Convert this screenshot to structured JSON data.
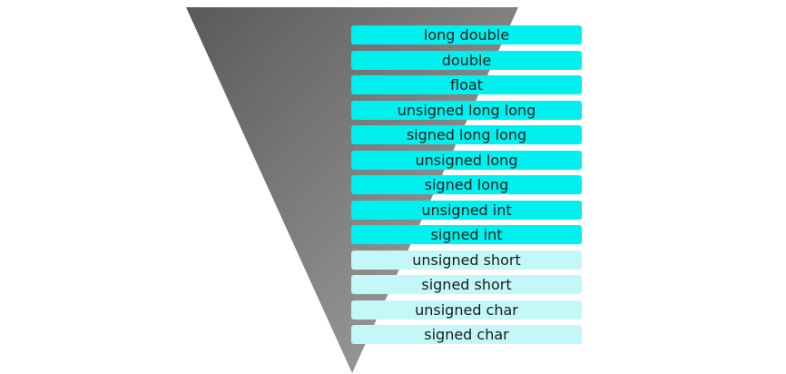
{
  "colors": {
    "funnel_gradient_start": "#5a5a5a",
    "funnel_gradient_end": "#a8a8a8",
    "row_strong": "#00f0f0",
    "row_light": "#c4f8f8",
    "text": "#1a1a1a",
    "background": "#ffffff"
  },
  "rows": [
    {
      "label": "long double",
      "shade": "strong"
    },
    {
      "label": "double",
      "shade": "strong"
    },
    {
      "label": "float",
      "shade": "strong"
    },
    {
      "label": "unsigned long long",
      "shade": "strong"
    },
    {
      "label": "signed long long",
      "shade": "strong"
    },
    {
      "label": "unsigned long",
      "shade": "strong"
    },
    {
      "label": "signed long",
      "shade": "strong"
    },
    {
      "label": "unsigned int",
      "shade": "strong"
    },
    {
      "label": "signed int",
      "shade": "strong"
    },
    {
      "label": "unsigned short",
      "shade": "light"
    },
    {
      "label": "signed short",
      "shade": "light"
    },
    {
      "label": "unsigned char",
      "shade": "light"
    },
    {
      "label": "signed char",
      "shade": "light"
    }
  ]
}
